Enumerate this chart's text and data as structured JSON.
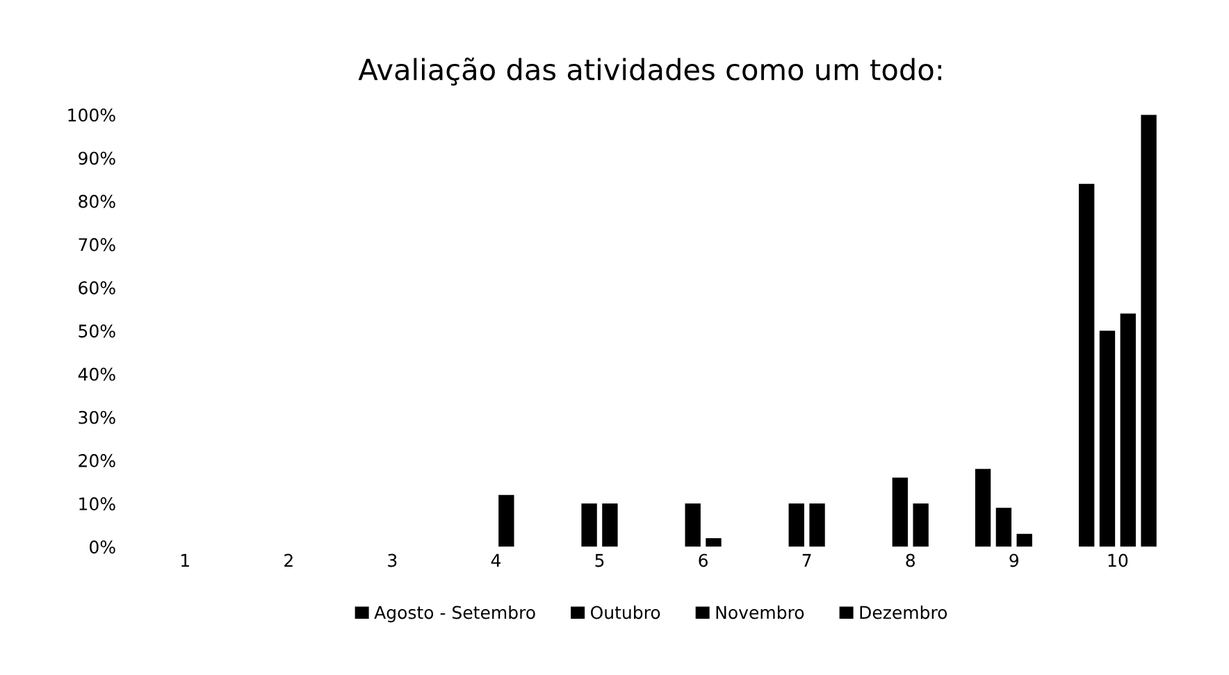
{
  "chart_data": {
    "type": "bar",
    "title": "Avaliação das atividades como um todo:",
    "categories": [
      "1",
      "2",
      "3",
      "4",
      "5",
      "6",
      "7",
      "8",
      "9",
      "10"
    ],
    "series": [
      {
        "name": "Agosto - Setembro",
        "color": "#000000",
        "values": [
          0,
          0,
          0,
          0,
          0,
          0,
          0,
          0,
          18,
          84
        ]
      },
      {
        "name": "Outubro",
        "color": "#000000",
        "values": [
          0,
          0,
          0,
          0,
          10,
          10,
          10,
          16,
          9,
          50
        ]
      },
      {
        "name": "Novembro",
        "color": "#000000",
        "values": [
          0,
          0,
          0,
          12,
          10,
          2,
          10,
          10,
          3,
          54
        ]
      },
      {
        "name": "Dezembro",
        "color": "#000000",
        "values": [
          0,
          0,
          0,
          0,
          0,
          0,
          0,
          0,
          0,
          100
        ]
      }
    ],
    "ylim": [
      0,
      100
    ],
    "yticks": [
      {
        "value": 0,
        "label": "0%"
      },
      {
        "value": 10,
        "label": "10%"
      },
      {
        "value": 20,
        "label": "20%"
      },
      {
        "value": 30,
        "label": "30%"
      },
      {
        "value": 40,
        "label": "40%"
      },
      {
        "value": 50,
        "label": "50%"
      },
      {
        "value": 60,
        "label": "60%"
      },
      {
        "value": 70,
        "label": "70%"
      },
      {
        "value": 80,
        "label": "80%"
      },
      {
        "value": 90,
        "label": "90%"
      },
      {
        "value": 100,
        "label": "100%"
      }
    ],
    "grid": false,
    "legend": "bottom"
  }
}
